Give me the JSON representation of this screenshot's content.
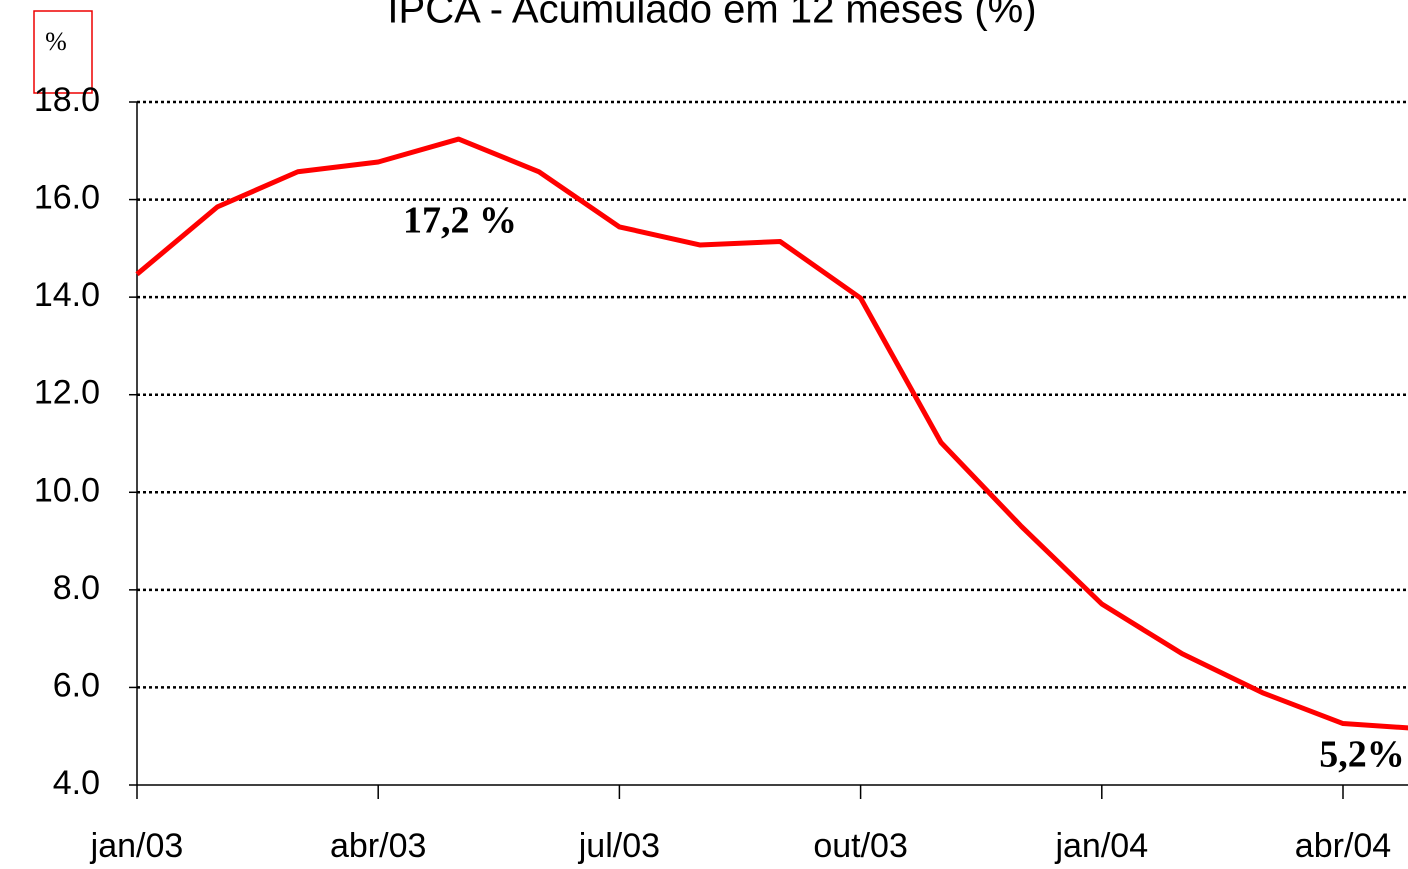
{
  "chart_data": {
    "type": "line",
    "title": "IPCA - Acumulado em 12 meses (%)",
    "y_label": "%",
    "categories": [
      "jan/03",
      null,
      null,
      "abr/03",
      null,
      null,
      "jul/03",
      null,
      null,
      "out/03",
      null,
      null,
      "jan/04",
      null,
      null,
      "abr/04",
      null
    ],
    "values": [
      14.47,
      15.85,
      16.57,
      16.77,
      17.24,
      16.57,
      15.44,
      15.07,
      15.14,
      13.98,
      11.02,
      9.3,
      7.71,
      6.69,
      5.89,
      5.26,
      5.15
    ],
    "color": "#ff0000",
    "ylim": [
      4,
      18
    ],
    "yticks": [
      {
        "value": 4,
        "label": "4.0"
      },
      {
        "value": 6,
        "label": "6.0"
      },
      {
        "value": 8,
        "label": "8.0"
      },
      {
        "value": 10,
        "label": "10.0"
      },
      {
        "value": 12,
        "label": "12.0"
      },
      {
        "value": 14,
        "label": "14.0"
      },
      {
        "value": 16,
        "label": "16.0"
      },
      {
        "value": 18,
        "label": "18.0"
      }
    ],
    "grid": true,
    "annotations": [
      "17,2 %",
      "5,2%"
    ]
  }
}
